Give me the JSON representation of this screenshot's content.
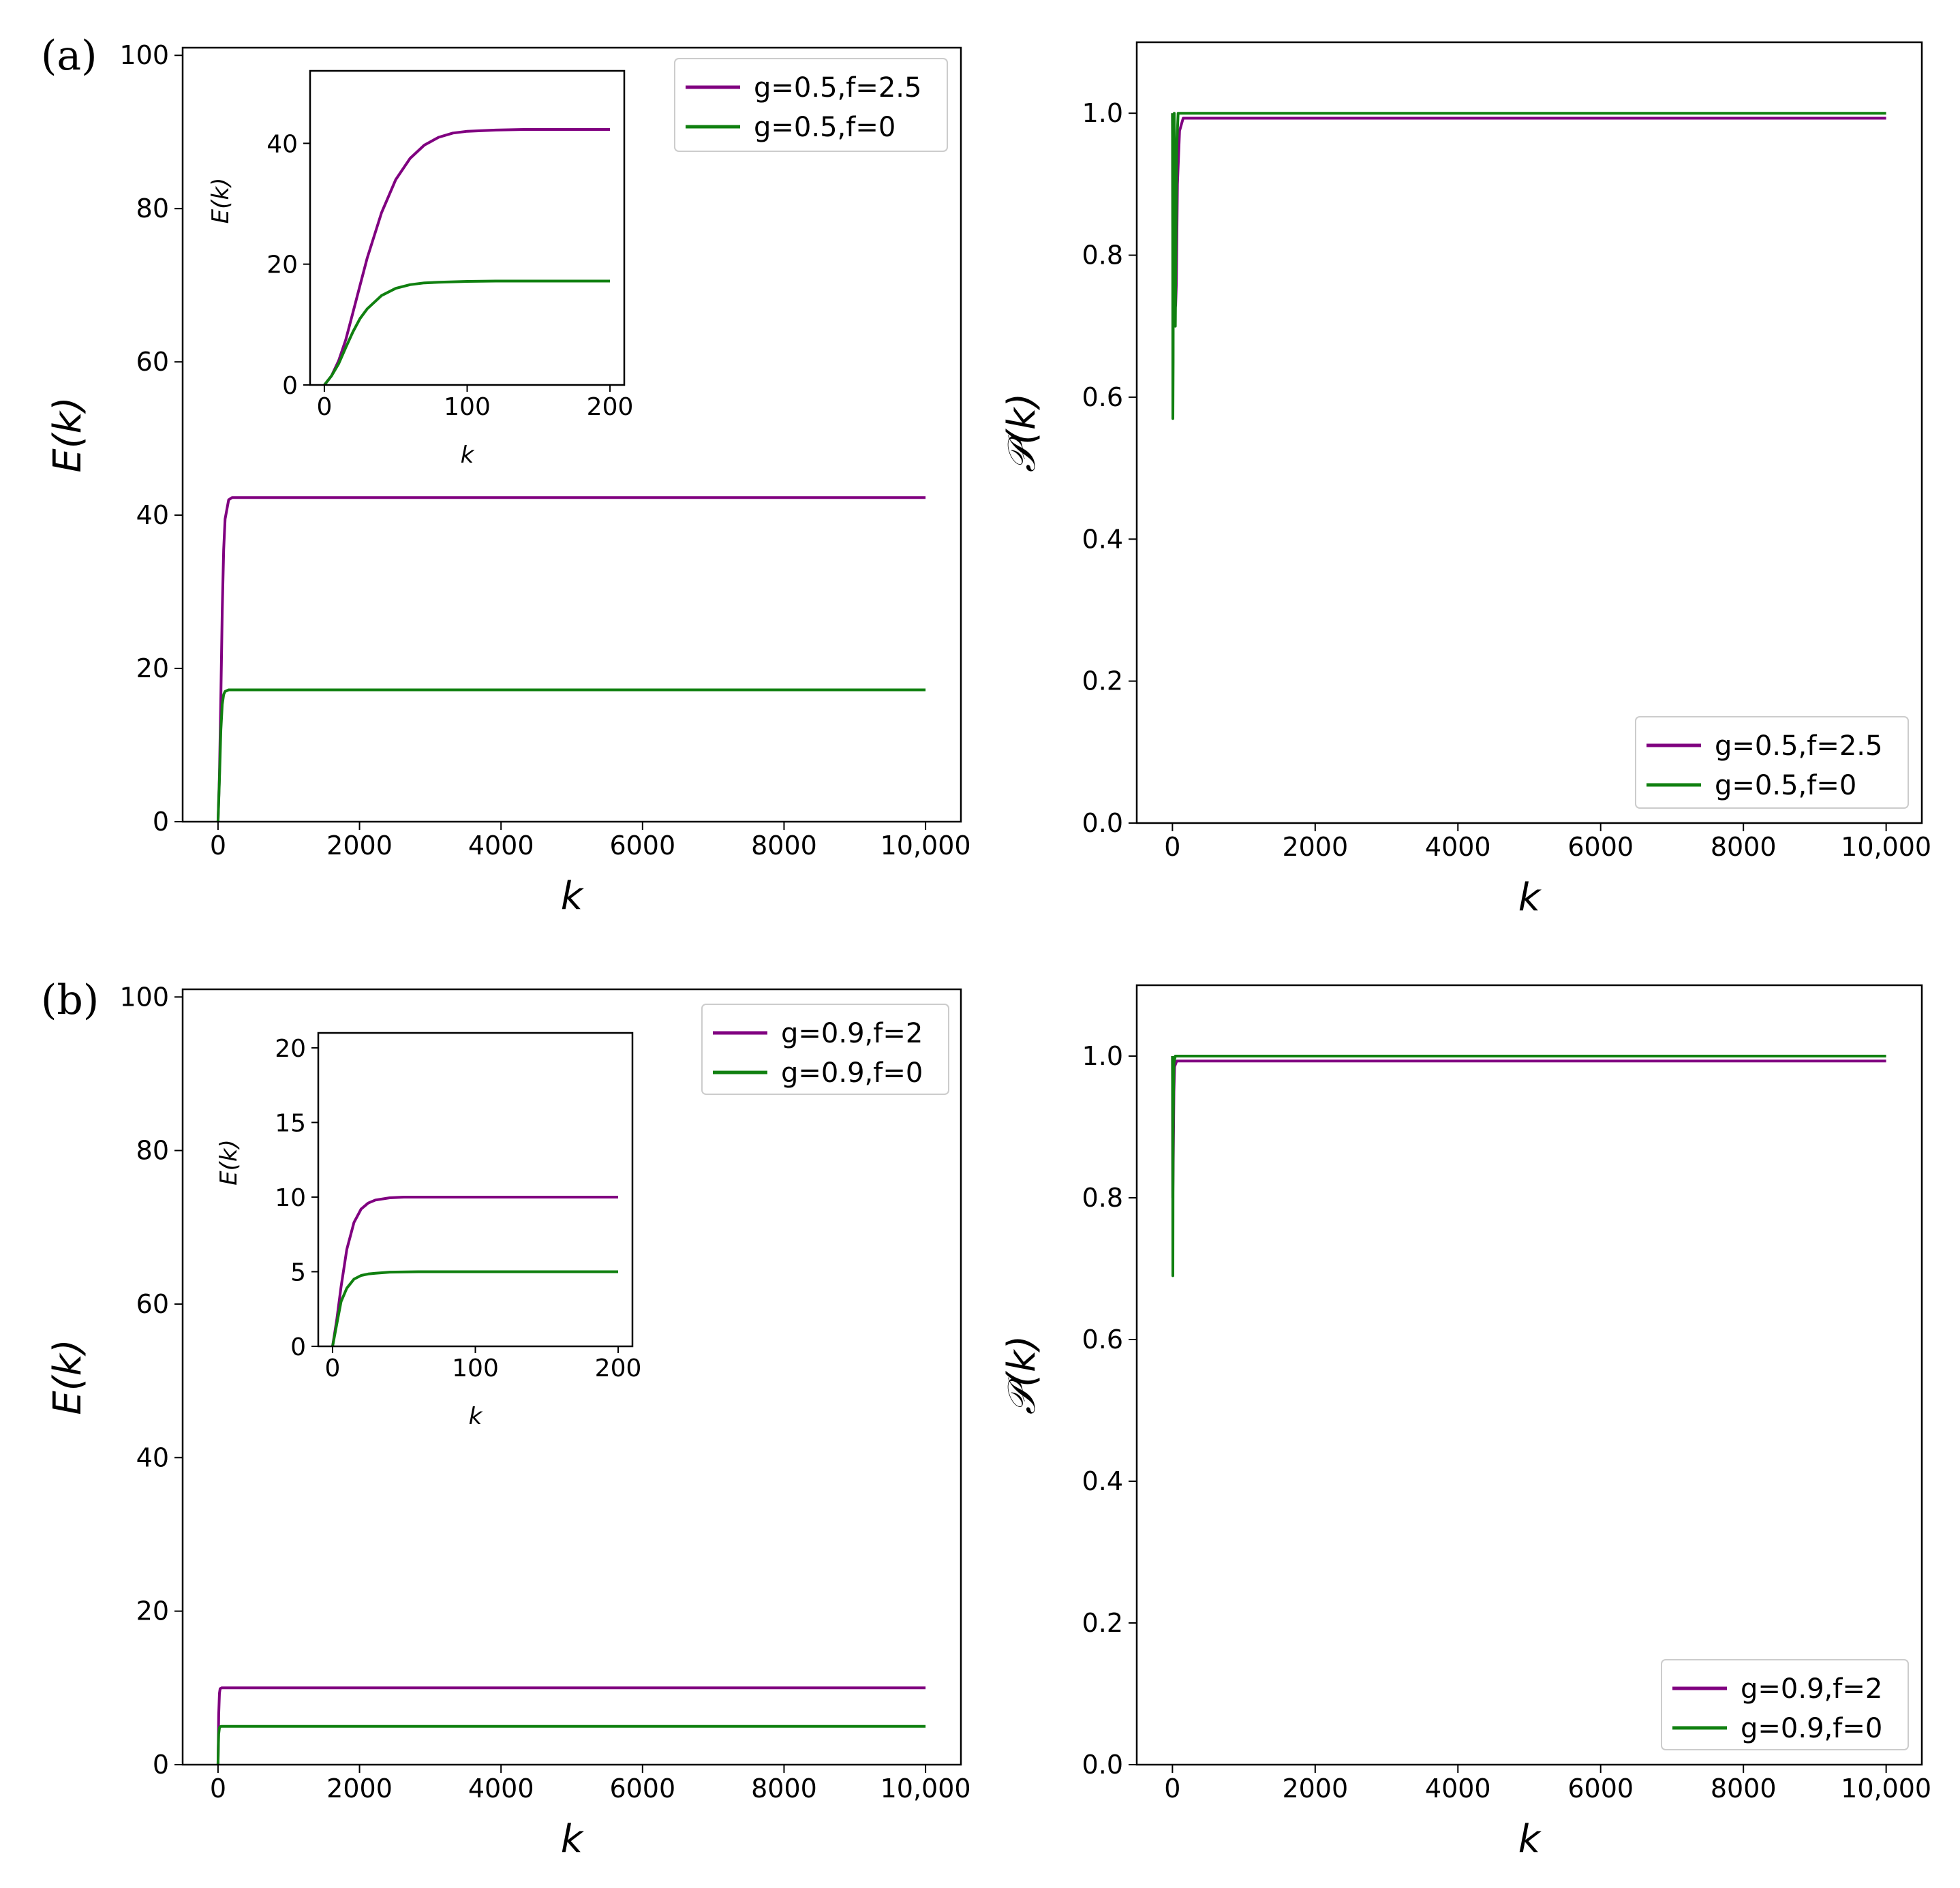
{
  "panel_labels": [
    "(a)",
    "(b)"
  ],
  "colors": {
    "purple": "#800080",
    "green": "#108010"
  },
  "chart_data": [
    {
      "id": "a-energy",
      "type": "line",
      "xlabel": "k",
      "ylabel": "E(k)",
      "xlim": [
        -500,
        10500
      ],
      "ylim": [
        0,
        101
      ],
      "xticks": [
        0,
        2000,
        4000,
        6000,
        8000,
        10000
      ],
      "xtick_labels": [
        "0",
        "2000",
        "4000",
        "6000",
        "8000",
        "10,000"
      ],
      "yticks": [
        0,
        20,
        40,
        60,
        80,
        100
      ],
      "ytick_labels": [
        "0",
        "20",
        "40",
        "60",
        "80",
        "100"
      ],
      "legend": "top-right",
      "series": [
        {
          "name": "g=0.5,f=2.5",
          "color": "#800080",
          "x": [
            0,
            20,
            40,
            60,
            80,
            100,
            150,
            200,
            10000
          ],
          "y": [
            0,
            6,
            16.5,
            27.5,
            35.5,
            39.5,
            42.0,
            42.3,
            42.3
          ]
        },
        {
          "name": "g=0.5,f=0",
          "color": "#108010",
          "x": [
            0,
            20,
            40,
            60,
            80,
            100,
            150,
            200,
            10000
          ],
          "y": [
            0,
            5.5,
            12.0,
            15.3,
            16.6,
            17.0,
            17.2,
            17.2,
            17.2
          ]
        }
      ],
      "inset": {
        "xlabel": "k",
        "ylabel": "E(k)",
        "xlim": [
          -10,
          210
        ],
        "ylim": [
          0,
          52
        ],
        "xticks": [
          0,
          100,
          200
        ],
        "xtick_labels": [
          "0",
          "100",
          "200"
        ],
        "yticks": [
          0,
          20,
          40
        ],
        "ytick_labels": [
          "0",
          "20",
          "40"
        ],
        "series": [
          {
            "name": "g=0.5,f=2.5",
            "color": "#800080",
            "x": [
              0,
              5,
              10,
              15,
              20,
              25,
              30,
              40,
              50,
              60,
              70,
              80,
              90,
              100,
              120,
              140,
              160,
              200
            ],
            "y": [
              0,
              1.5,
              4,
              7.5,
              12,
              16.5,
              21,
              28.5,
              34,
              37.5,
              39.7,
              41,
              41.7,
              42.0,
              42.2,
              42.3,
              42.3,
              42.3
            ]
          },
          {
            "name": "g=0.5,f=0",
            "color": "#108010",
            "x": [
              0,
              5,
              10,
              15,
              20,
              25,
              30,
              40,
              50,
              60,
              70,
              80,
              100,
              120,
              160,
              200
            ],
            "y": [
              0,
              1.5,
              3.5,
              6.2,
              8.8,
              11,
              12.6,
              14.8,
              16.0,
              16.6,
              16.9,
              17.0,
              17.15,
              17.2,
              17.2,
              17.2
            ]
          }
        ]
      }
    },
    {
      "id": "a-purity",
      "type": "line",
      "xlabel": "k",
      "ylabel": "𝒫(k)",
      "xlim": [
        -500,
        10500
      ],
      "ylim": [
        0,
        1.1
      ],
      "xticks": [
        0,
        2000,
        4000,
        6000,
        8000,
        10000
      ],
      "xtick_labels": [
        "0",
        "2000",
        "4000",
        "6000",
        "8000",
        "10,000"
      ],
      "yticks": [
        0,
        0.2,
        0.4,
        0.6,
        0.8,
        1.0
      ],
      "ytick_labels": [
        "0.0",
        "0.2",
        "0.4",
        "0.6",
        "0.8",
        "1.0"
      ],
      "legend": "bottom-right",
      "series": [
        {
          "name": "g=0.5,f=2.5",
          "color": "#800080",
          "x": [
            0,
            5,
            15,
            30,
            45,
            55,
            70,
            100,
            150,
            10000
          ],
          "y": [
            1.0,
            0.85,
            0.7,
            0.72,
            0.73,
            0.76,
            0.9,
            0.975,
            0.993,
            0.993
          ]
        },
        {
          "name": "g=0.5,f=0",
          "color": "#108010",
          "x": [
            0,
            3,
            6,
            10,
            15,
            25,
            40,
            60,
            80,
            100,
            10000
          ],
          "y": [
            1.0,
            0.88,
            0.57,
            0.65,
            0.95,
            1.0,
            0.7,
            0.95,
            1.0,
            1.0,
            1.0
          ]
        }
      ]
    },
    {
      "id": "b-energy",
      "type": "line",
      "xlabel": "k",
      "ylabel": "E(k)",
      "xlim": [
        -500,
        10500
      ],
      "ylim": [
        0,
        101
      ],
      "xticks": [
        0,
        2000,
        4000,
        6000,
        8000,
        10000
      ],
      "xtick_labels": [
        "0",
        "2000",
        "4000",
        "6000",
        "8000",
        "10,000"
      ],
      "yticks": [
        0,
        20,
        40,
        60,
        80,
        100
      ],
      "ytick_labels": [
        "0",
        "20",
        "40",
        "60",
        "80",
        "100"
      ],
      "legend": "top-right",
      "series": [
        {
          "name": "g=0.9,f=2",
          "color": "#800080",
          "x": [
            0,
            5,
            10,
            20,
            30,
            50,
            10000
          ],
          "y": [
            0,
            3,
            6.5,
            9.3,
            9.9,
            10.0,
            10.0
          ]
        },
        {
          "name": "g=0.9,f=0",
          "color": "#108010",
          "x": [
            0,
            5,
            10,
            20,
            30,
            50,
            10000
          ],
          "y": [
            0,
            2.5,
            4.0,
            4.8,
            4.95,
            5.0,
            5.0
          ]
        }
      ],
      "inset": {
        "xlabel": "k",
        "ylabel": "E(k)",
        "xlim": [
          -10,
          210
        ],
        "ylim": [
          0,
          21
        ],
        "xticks": [
          0,
          100,
          200
        ],
        "xtick_labels": [
          "0",
          "100",
          "200"
        ],
        "yticks": [
          0,
          5,
          10,
          15,
          20
        ],
        "ytick_labels": [
          "0",
          "5",
          "10",
          "15",
          "20"
        ],
        "series": [
          {
            "name": "g=0.9,f=2",
            "color": "#800080",
            "x": [
              0,
              3,
              6,
              10,
              15,
              20,
              25,
              30,
              40,
              50,
              70,
              100,
              200
            ],
            "y": [
              0,
              1.8,
              4.0,
              6.5,
              8.3,
              9.2,
              9.6,
              9.8,
              9.95,
              10.0,
              10.0,
              10.0,
              10.0
            ]
          },
          {
            "name": "g=0.9,f=0",
            "color": "#108010",
            "x": [
              0,
              3,
              6,
              10,
              15,
              20,
              25,
              30,
              40,
              60,
              100,
              200
            ],
            "y": [
              0,
              1.5,
              3.0,
              3.9,
              4.5,
              4.75,
              4.85,
              4.9,
              4.97,
              5.0,
              5.0,
              5.0
            ]
          }
        ]
      }
    },
    {
      "id": "b-purity",
      "type": "line",
      "xlabel": "k",
      "ylabel": "𝒫(k)",
      "xlim": [
        -500,
        10500
      ],
      "ylim": [
        0,
        1.1
      ],
      "xticks": [
        0,
        2000,
        4000,
        6000,
        8000,
        10000
      ],
      "xtick_labels": [
        "0",
        "2000",
        "4000",
        "6000",
        "8000",
        "10,000"
      ],
      "yticks": [
        0,
        0.2,
        0.4,
        0.6,
        0.8,
        1.0
      ],
      "ytick_labels": [
        "0.0",
        "0.2",
        "0.4",
        "0.6",
        "0.8",
        "1.0"
      ],
      "legend": "bottom-right",
      "series": [
        {
          "name": "g=0.9,f=2",
          "color": "#800080",
          "x": [
            0,
            5,
            10,
            20,
            30,
            60,
            10000
          ],
          "y": [
            1.0,
            0.8,
            0.84,
            0.95,
            0.985,
            0.993,
            0.993
          ]
        },
        {
          "name": "g=0.9,f=0",
          "color": "#108010",
          "x": [
            0,
            3,
            6,
            10,
            20,
            40,
            10000
          ],
          "y": [
            1.0,
            0.9,
            0.69,
            0.9,
            0.99,
            1.0,
            1.0
          ]
        }
      ]
    }
  ]
}
